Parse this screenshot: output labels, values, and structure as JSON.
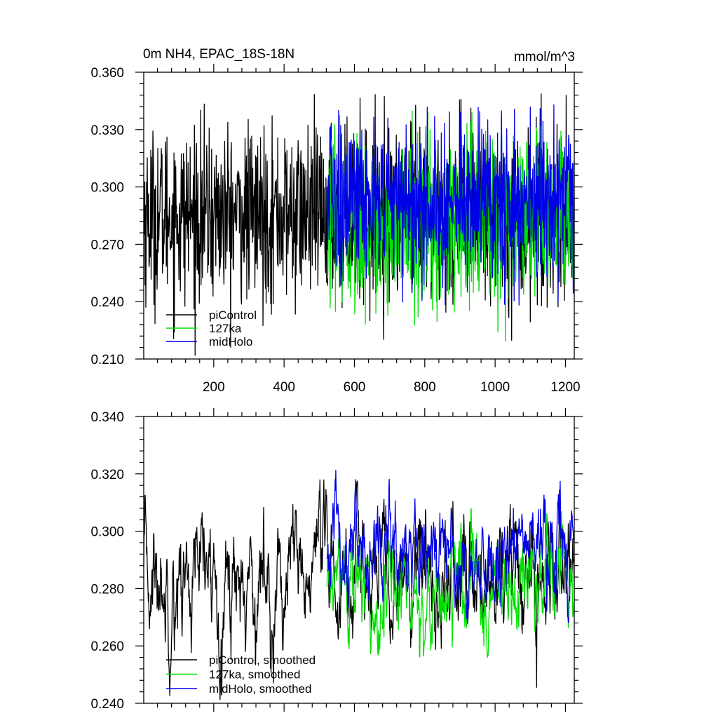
{
  "figure": {
    "title_left": "0m NH4, EPAC_18S-18N",
    "title_right": "mmol/m^3"
  },
  "chart_data": [
    {
      "type": "line",
      "title": "0m NH4, EPAC_18S-18N",
      "units": "mmol/m^3",
      "xlim": [
        1,
        1225
      ],
      "ylim": [
        0.21,
        0.36
      ],
      "x_ticks": [
        200,
        400,
        600,
        800,
        1000,
        1200
      ],
      "x_tick_labels": [
        "200",
        "400",
        "600",
        "800",
        "1000",
        "1200"
      ],
      "y_ticks": [
        0.21,
        0.24,
        0.27,
        0.3,
        0.33,
        0.36
      ],
      "y_tick_labels": [
        "0.210",
        "0.240",
        "0.270",
        "0.300",
        "0.330",
        "0.360"
      ],
      "grid": false,
      "legend_position": "bottom-left",
      "series": [
        {
          "name": "piControl",
          "color": "#000000",
          "x_range": [
            1,
            1225
          ],
          "mean": 0.285,
          "amplitude": 0.025,
          "min": 0.211,
          "max": 0.349
        },
        {
          "name": "127ka",
          "color": "#00e000",
          "x_range": [
            522,
            1225
          ],
          "mean": 0.28,
          "amplitude": 0.025,
          "min": 0.219,
          "max": 0.34
        },
        {
          "name": "midHolo",
          "color": "#0000e6",
          "x_range": [
            522,
            1225
          ],
          "mean": 0.292,
          "amplitude": 0.024,
          "min": 0.238,
          "max": 0.343
        }
      ]
    },
    {
      "type": "line",
      "xlim": [
        1,
        1225
      ],
      "ylim": [
        0.24,
        0.34
      ],
      "x_ticks": [
        200,
        400,
        600,
        800,
        1000,
        1200
      ],
      "y_ticks": [
        0.24,
        0.26,
        0.28,
        0.3,
        0.32,
        0.34
      ],
      "y_tick_labels": [
        "0.240",
        "0.260",
        "0.280",
        "0.300",
        "0.320",
        "0.340"
      ],
      "grid": false,
      "legend_position": "bottom-left",
      "series": [
        {
          "name": "piControl, smoothed",
          "color": "#000000",
          "x_range": [
            1,
            1225
          ],
          "mean": 0.283,
          "amplitude": 0.012,
          "min": 0.241,
          "max": 0.318
        },
        {
          "name": "127ka, smoothed",
          "color": "#00e000",
          "x_range": [
            522,
            1225
          ],
          "mean": 0.279,
          "amplitude": 0.01,
          "min": 0.256,
          "max": 0.308
        },
        {
          "name": "midHolo, smoothed",
          "color": "#0000e6",
          "x_range": [
            522,
            1225
          ],
          "mean": 0.293,
          "amplitude": 0.01,
          "min": 0.268,
          "max": 0.325
        }
      ]
    }
  ]
}
